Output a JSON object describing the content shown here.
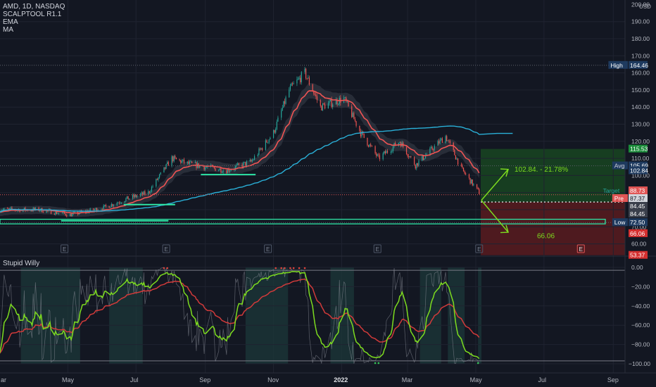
{
  "header": {
    "symbol_line": "AMD, 1D, NASDAQ",
    "indicators": [
      "SCALPTOOL R1.1",
      "EMA",
      "MA"
    ],
    "currency": "USD"
  },
  "oscillator": {
    "title": "Stupid Willy"
  },
  "colors": {
    "background": "#131722",
    "up": "#26a69a",
    "down": "#ef5350",
    "ema": "#f05454",
    "ma": "#2ab0d8",
    "green_line": "#7ddc1f",
    "target_zone": "#1b5e20",
    "stop_zone": "#7f1d1d"
  },
  "chart_data": [
    {
      "type": "candlestick",
      "title": "AMD, 1D, NASDAQ",
      "x_ticks": [
        "ar",
        "May",
        "Jul",
        "Sep",
        "Nov",
        "2022",
        "Mar",
        "May",
        "Jul",
        "Sep"
      ],
      "y_ticks": [
        60,
        70,
        80,
        90,
        100,
        110,
        120,
        130,
        140,
        150,
        160,
        170,
        180,
        190,
        200
      ],
      "ylim": [
        55,
        200
      ],
      "close_path": [
        [
          "2021-03-01",
          80
        ],
        [
          "2021-04-05",
          80
        ],
        [
          "2021-05-03",
          77
        ],
        [
          "2021-06-01",
          81
        ],
        [
          "2021-06-21",
          86
        ],
        [
          "2021-07-12",
          90
        ],
        [
          "2021-08-02",
          110
        ],
        [
          "2021-08-16",
          107
        ],
        [
          "2021-09-01",
          105
        ],
        [
          "2021-09-20",
          103
        ],
        [
          "2021-10-12",
          108
        ],
        [
          "2021-11-01",
          125
        ],
        [
          "2021-11-15",
          150
        ],
        [
          "2021-11-29",
          160
        ],
        [
          "2021-12-13",
          140
        ],
        [
          "2022-01-03",
          145
        ],
        [
          "2022-01-18",
          125
        ],
        [
          "2022-02-03",
          110
        ],
        [
          "2022-02-22",
          120
        ],
        [
          "2022-03-08",
          106
        ],
        [
          "2022-03-22",
          115
        ],
        [
          "2022-04-04",
          123
        ],
        [
          "2022-04-19",
          103
        ],
        [
          "2022-05-04",
          90
        ]
      ],
      "price_labels": [
        {
          "label": "High",
          "value": 164.46
        },
        {
          "label": "",
          "value": 115.53
        },
        {
          "label": "Avg",
          "value": 105.69
        },
        {
          "label": "",
          "value": 102.84
        },
        {
          "label": "Target",
          "value": 88.73
        },
        {
          "label": "Pre",
          "value": 87.37
        },
        {
          "label": "",
          "value": 84.45
        },
        {
          "label": "",
          "value": 84.45
        },
        {
          "label": "Low",
          "value": 72.5
        },
        {
          "label": "",
          "value": 66.06
        },
        {
          "label": "",
          "value": 53.37
        }
      ],
      "projection_labels": [
        "102.84. - 21.78%",
        "66.06"
      ],
      "event_markers": [
        "E",
        "E",
        "E",
        "E",
        "E",
        "E"
      ]
    },
    {
      "type": "line",
      "title": "Stupid Willy",
      "y_ticks": [
        "0.00",
        "−20.00",
        "−40.00",
        "−60.00",
        "−80.00",
        "−100.00"
      ],
      "ylim": [
        -100,
        0
      ]
    }
  ]
}
